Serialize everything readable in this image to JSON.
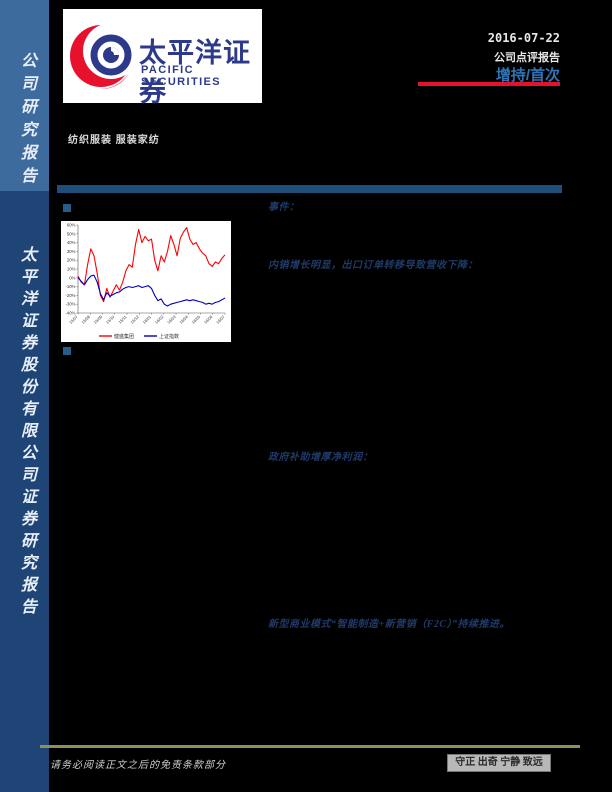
{
  "sidebar": {
    "top_label": "公司研究报告",
    "bottom_label": "太平洋证券股份有限公司证券研究报告",
    "top_color": "#3e6b9e",
    "bottom_color": "#1e4575"
  },
  "header": {
    "logo_title": "太平洋证券",
    "logo_subtitle": "PACIFIC  SECURITIES",
    "date": "2016-07-22",
    "report_type": "公司点评报告",
    "rating": "增持/首次",
    "rating_color": "#2e75b6",
    "accent_red": "#e8112d",
    "sector": "纺织服装 服装家纺"
  },
  "sections": {
    "event": "事件：",
    "sales": "内销增长明显，出口订单转移导致营收下降：",
    "subsidy": "政府补助增厚净利润：",
    "model": "新型商业模式“智能制造+新营销（F2C）”持续推进。"
  },
  "chart_data": {
    "type": "line",
    "title": "",
    "xlabel": "",
    "ylabel": "",
    "y_unit": "%",
    "ylim": [
      -40,
      60
    ],
    "y_tick_step": 10,
    "grid": false,
    "legend_position": "bottom",
    "x_ticks": [
      "15/07",
      "15/08",
      "15/09",
      "15/10",
      "15/11",
      "15/12",
      "16/01",
      "16/02",
      "16/03",
      "16/04",
      "16/05",
      "16/06",
      "16/07"
    ],
    "series": [
      {
        "name": "健盛集团",
        "color": "#ff0000",
        "values": [
          2,
          -5,
          -8,
          15,
          33,
          25,
          5,
          -20,
          -27,
          -12,
          -22,
          -15,
          -8,
          -14,
          -5,
          8,
          15,
          12,
          38,
          55,
          40,
          47,
          42,
          44,
          20,
          8,
          25,
          18,
          30,
          48,
          38,
          25,
          45,
          52,
          57,
          44,
          38,
          40,
          33,
          28,
          25,
          16,
          13,
          18,
          16,
          22,
          26
        ]
      },
      {
        "name": "上证指数",
        "color": "#0000bf",
        "values": [
          0,
          -4,
          -8,
          -2,
          2,
          3,
          -5,
          -18,
          -25,
          -17,
          -21,
          -19,
          -17,
          -16,
          -13,
          -11,
          -10,
          -11,
          -10,
          -9,
          -11,
          -10,
          -9,
          -12,
          -20,
          -26,
          -24,
          -30,
          -32,
          -30,
          -29,
          -28,
          -27,
          -26,
          -25,
          -26,
          -25,
          -26,
          -27,
          -28,
          -30,
          -29,
          -30,
          -28,
          -27,
          -25,
          -23
        ]
      }
    ]
  },
  "footer": {
    "disclaimer": "请务必阅读正文之后的免责条款部分",
    "slogan": "守正 出奇 宁静 致远",
    "line_color": "#8f8f5a"
  }
}
